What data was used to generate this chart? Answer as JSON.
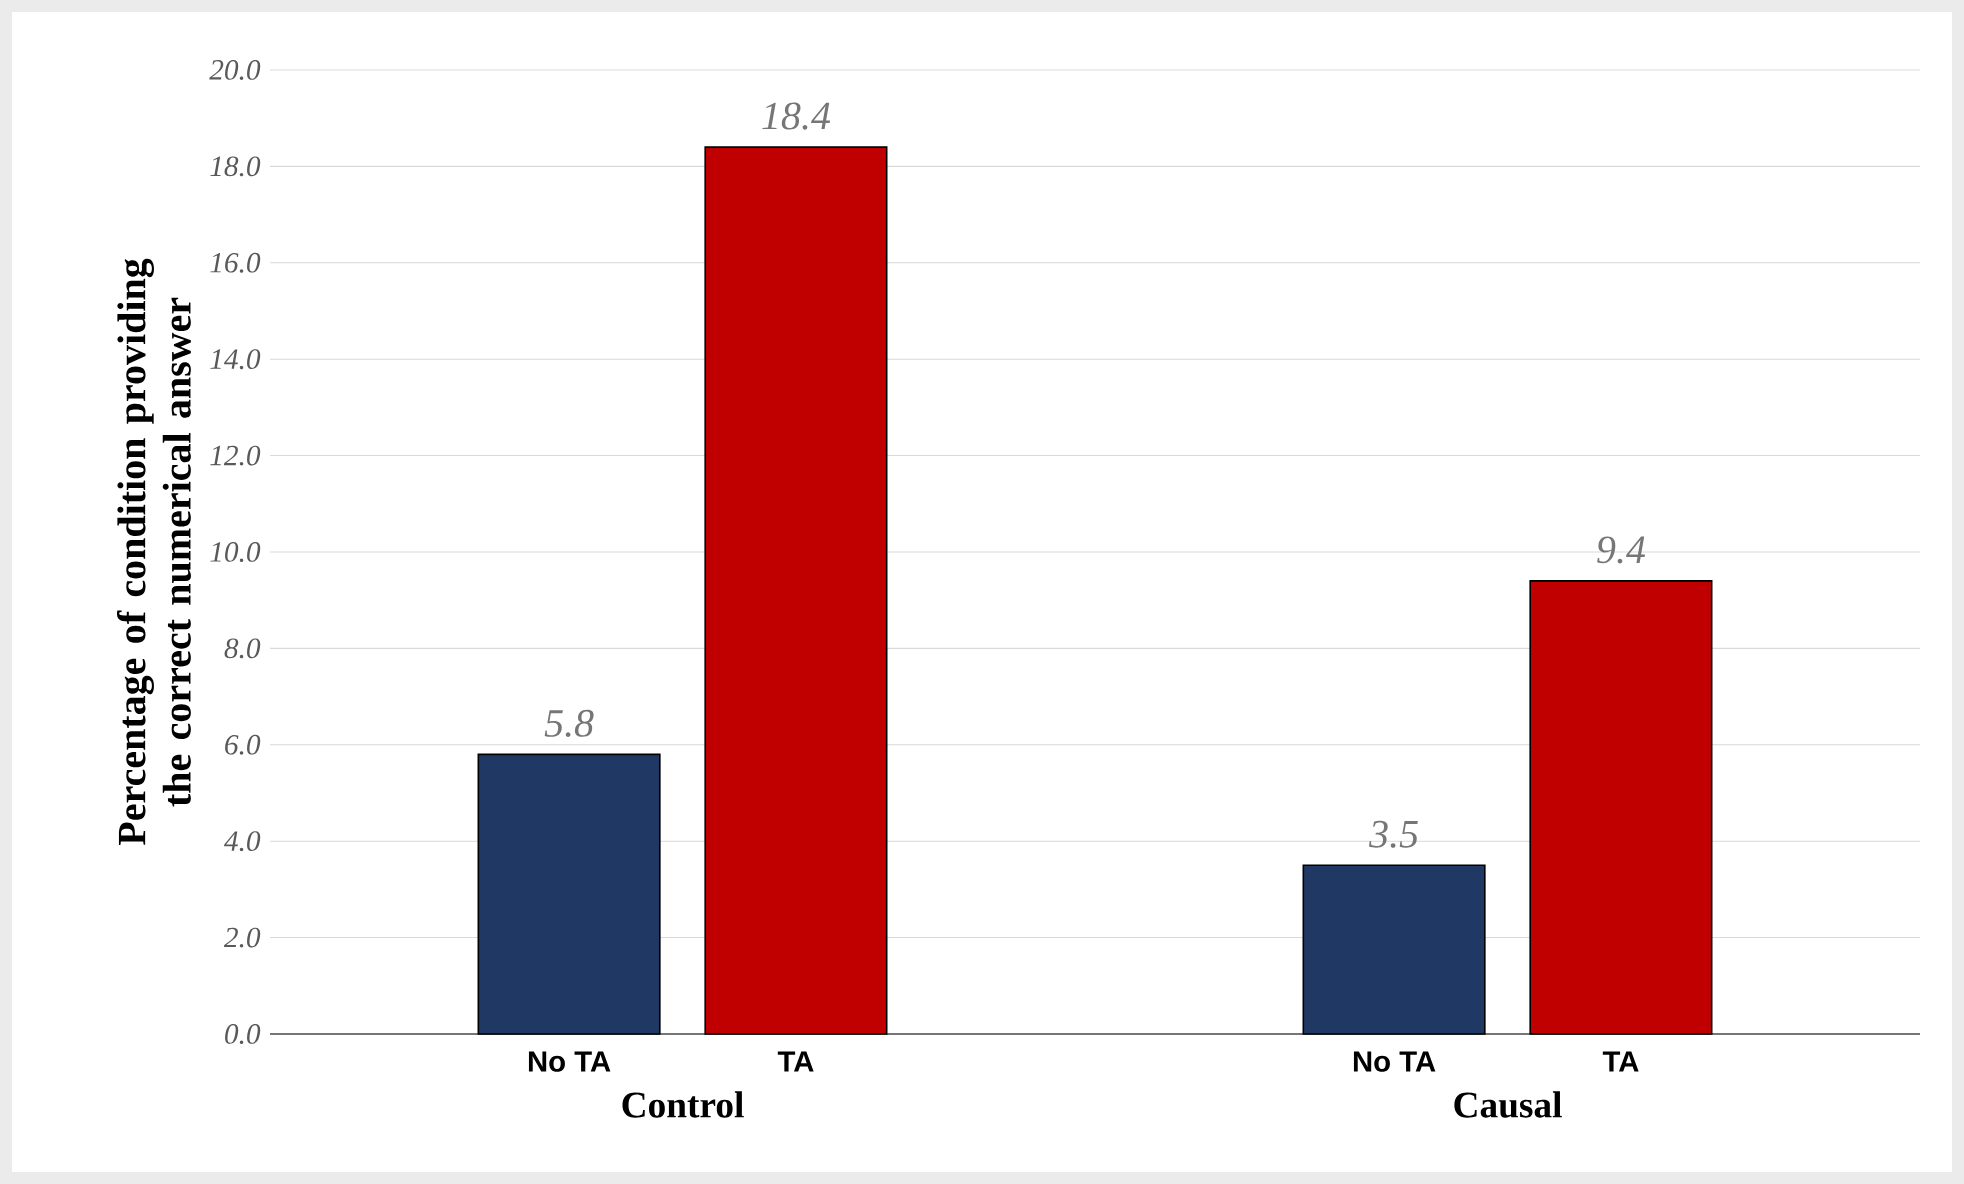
{
  "chart_data": {
    "type": "bar",
    "ylabel": "Percentage of condition providing the correct numerical answer",
    "categories": [
      "Control",
      "Causal"
    ],
    "series": [
      {
        "name": "No TA",
        "color": "#203864",
        "values": [
          5.8,
          3.5
        ]
      },
      {
        "name": "TA",
        "color": "#c00000",
        "values": [
          18.4,
          9.4
        ]
      }
    ],
    "ylim": [
      0,
      20
    ],
    "yticks": [
      {
        "value": 0,
        "label": "0.0"
      },
      {
        "value": 2,
        "label": "2.0"
      },
      {
        "value": 4,
        "label": "4.0"
      },
      {
        "value": 6,
        "label": "6.0"
      },
      {
        "value": 8,
        "label": "8.0"
      },
      {
        "value": 10,
        "label": "10.0"
      },
      {
        "value": 12,
        "label": "12.0"
      },
      {
        "value": 14,
        "label": "14.0"
      },
      {
        "value": 16,
        "label": "16.0"
      },
      {
        "value": 18,
        "label": "18.0"
      },
      {
        "value": 20,
        "label": "20.0"
      }
    ],
    "grid": "y",
    "data_labels": true
  }
}
